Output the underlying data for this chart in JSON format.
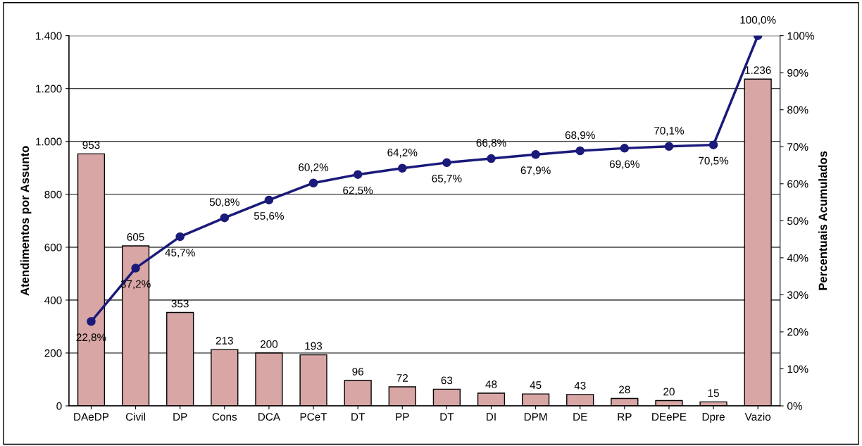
{
  "chart_data": {
    "type": "bar",
    "ylabel": "Atendimentos por Assunto",
    "y2label": "Percentuais Acumulados",
    "categories": [
      "DAeDP",
      "Civil",
      "DP",
      "Cons",
      "DCA",
      "PCeT",
      "DT",
      "PP",
      "DT",
      "DI",
      "DPM",
      "DE",
      "RP",
      "DEePE",
      "Dpre",
      "Vazio"
    ],
    "series": [
      {
        "color": "#d9a6a6",
        "values": [
          953,
          605,
          353,
          213,
          200,
          193,
          96,
          72,
          63,
          48,
          45,
          43,
          28,
          20,
          15,
          1236
        ],
        "value_labels": [
          "953",
          "605",
          "353",
          "213",
          "200",
          "193",
          "96",
          "72",
          "63",
          "48",
          "45",
          "43",
          "28",
          "20",
          "15",
          "1.236"
        ]
      },
      {
        "type": "line",
        "axis": "y2",
        "color": "#1a1a7a",
        "marker": "circle",
        "line_style": "solid",
        "values": [
          22.8,
          37.2,
          45.7,
          50.8,
          55.6,
          60.2,
          62.5,
          64.2,
          65.7,
          66.8,
          67.9,
          68.9,
          69.6,
          70.1,
          70.5,
          100.0
        ],
        "value_labels": [
          "22,8%",
          "37,2%",
          "45,7%",
          "50,8%",
          "55,6%",
          "60,2%",
          "62,5%",
          "64,2%",
          "65,7%",
          "66,8%",
          "67,9%",
          "68,9%",
          "69,6%",
          "70,1%",
          "70,5%",
          "100,0%"
        ]
      }
    ],
    "ylim": [
      0,
      1400
    ],
    "yticks": [
      0,
      200,
      400,
      600,
      800,
      {
        "value": 1000,
        "label": "1.000"
      },
      {
        "value": 1200,
        "label": "1.200"
      },
      {
        "value": 1400,
        "label": "1.400"
      }
    ],
    "y2lim": [
      0,
      100
    ],
    "y2ticks": [
      {
        "value": 0,
        "label": "0%"
      },
      {
        "value": 10,
        "label": "10%"
      },
      {
        "value": 20,
        "label": "20%"
      },
      {
        "value": 30,
        "label": "30%"
      },
      {
        "value": 40,
        "label": "40%"
      },
      {
        "value": 50,
        "label": "50%"
      },
      {
        "value": 60,
        "label": "60%"
      },
      {
        "value": 70,
        "label": "70%"
      },
      {
        "value": 80,
        "label": "80%"
      },
      {
        "value": 90,
        "label": "90%"
      },
      {
        "value": 100,
        "label": "100%"
      }
    ],
    "grid": "y"
  }
}
